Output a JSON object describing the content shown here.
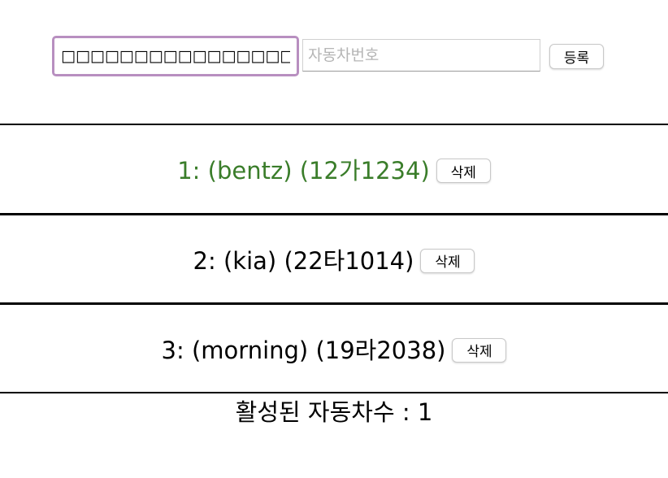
{
  "form": {
    "name_input_value": "□□□□□□□□□□□□□□□□",
    "number_input_value": "",
    "number_input_placeholder": "자동차번호",
    "register_label": "등록"
  },
  "cars": [
    {
      "text": "1: (bentz) (12가1234)",
      "delete_label": "삭제",
      "active": true,
      "color": "#3a7d2a"
    },
    {
      "text": "2: (kia) (22타1014)",
      "delete_label": "삭제",
      "active": false,
      "color": "#000000"
    },
    {
      "text": "3: (morning) (19라2038)",
      "delete_label": "삭제",
      "active": false,
      "color": "#000000"
    }
  ],
  "footer": {
    "active_count_text": "활성된 자동차수 : 1"
  }
}
